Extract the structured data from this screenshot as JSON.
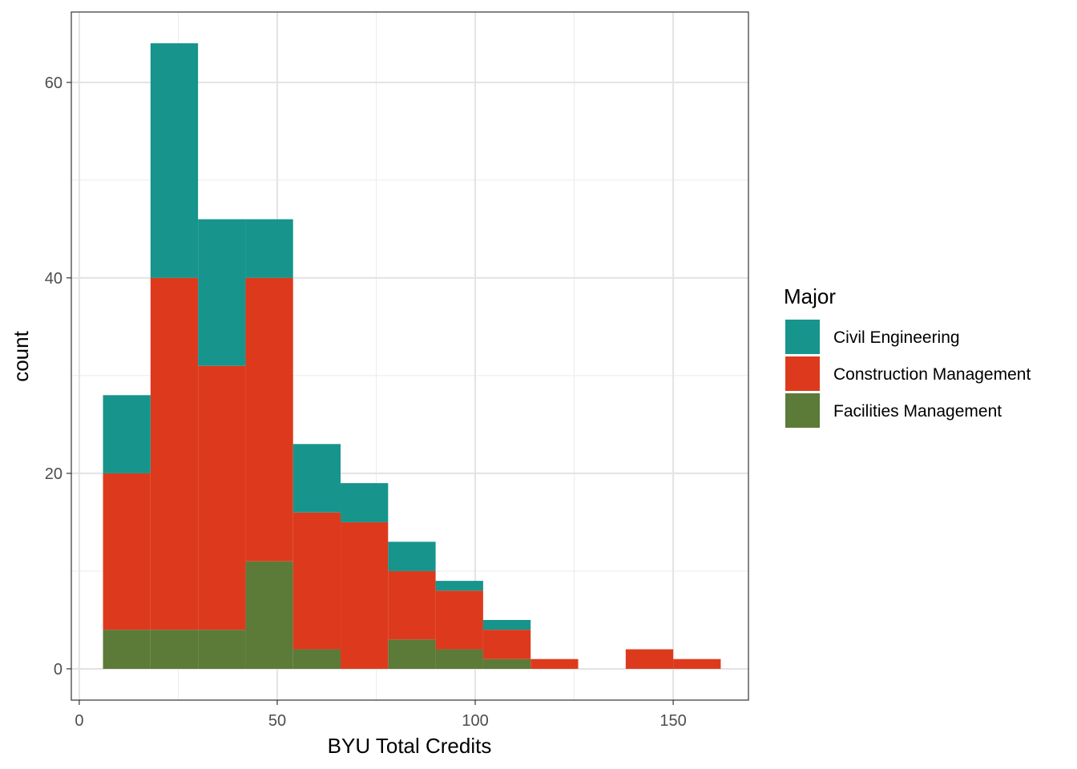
{
  "chart_data": {
    "type": "bar",
    "subtype": "stacked-histogram",
    "xlabel": "BYU Total Credits",
    "ylabel": "count",
    "xlim": [
      -2,
      169
    ],
    "ylim": [
      -3.2,
      67.2
    ],
    "x_ticks": [
      0,
      50,
      100,
      150
    ],
    "y_ticks": [
      0,
      20,
      40,
      60
    ],
    "grid": true,
    "legend": {
      "title": "Major",
      "position": "right"
    },
    "bin_width": 12,
    "bins": [
      [
        6,
        18
      ],
      [
        18,
        30
      ],
      [
        30,
        42
      ],
      [
        42,
        54
      ],
      [
        54,
        66
      ],
      [
        66,
        78
      ],
      [
        78,
        90
      ],
      [
        90,
        102
      ],
      [
        102,
        114
      ],
      [
        114,
        126
      ],
      [
        126,
        138
      ],
      [
        138,
        150
      ],
      [
        150,
        162
      ]
    ],
    "series": [
      {
        "name": "Civil Engineering",
        "color": "#17948C",
        "values": [
          8,
          24,
          15,
          6,
          7,
          4,
          3,
          1,
          1,
          0,
          0,
          0,
          0
        ]
      },
      {
        "name": "Construction Management",
        "color": "#DD3A1D",
        "values": [
          16,
          36,
          27,
          29,
          14,
          15,
          7,
          6,
          3,
          1,
          0,
          2,
          1
        ]
      },
      {
        "name": "Facilities Management",
        "color": "#5C7A38",
        "values": [
          4,
          4,
          4,
          11,
          2,
          0,
          3,
          2,
          1,
          0,
          0,
          0,
          0
        ]
      }
    ]
  }
}
